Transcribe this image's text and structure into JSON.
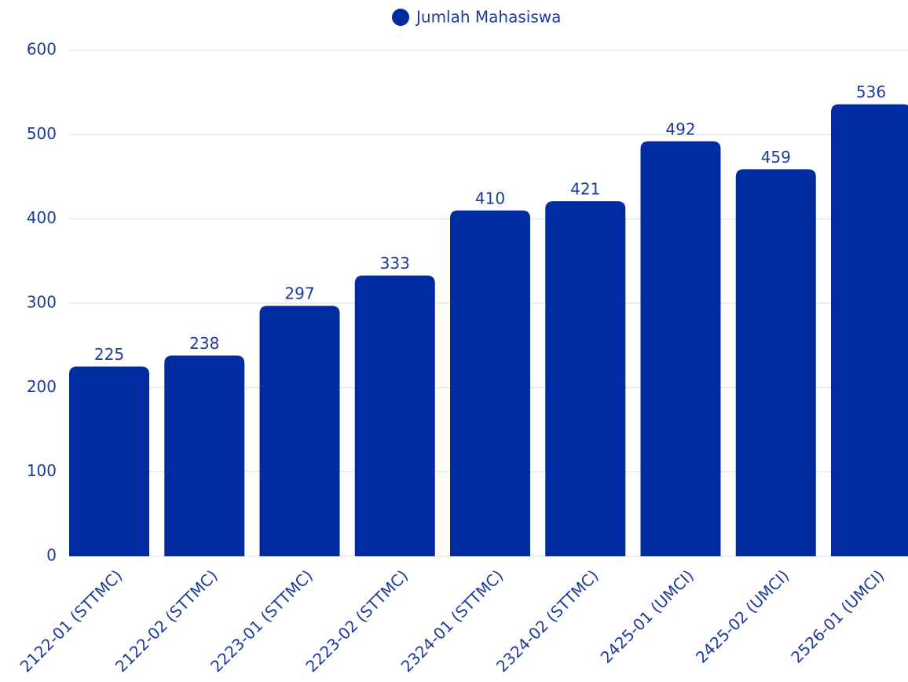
{
  "chart_data": {
    "type": "bar",
    "legend": "Jumlah Mahasiswa",
    "categories": [
      "2122-01 (STTMC)",
      "2122-02 (STTMC)",
      "2223-01 (STTMC)",
      "2223-02 (STTMC)",
      "2324-01 (STTMC)",
      "2324-02 (STTMC)",
      "2425-01 (UMCI)",
      "2425-02 (UMCI)",
      "2526-01 (UMCI)"
    ],
    "values": [
      225,
      238,
      297,
      333,
      410,
      421,
      492,
      459,
      536
    ],
    "color": "#002ba1",
    "ylim": [
      0,
      600
    ],
    "yticks": [
      0,
      100,
      200,
      300,
      400,
      500,
      600
    ],
    "grid": true
  }
}
